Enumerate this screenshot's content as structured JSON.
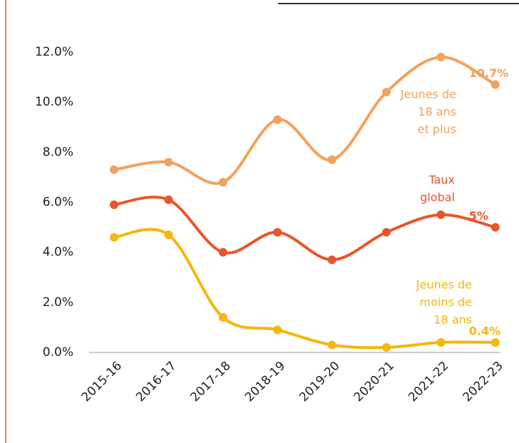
{
  "chart_data": {
    "type": "line",
    "categories": [
      "2015-16",
      "2016-17",
      "2017-18",
      "2018-19",
      "2019-20",
      "2020-21",
      "2021-22",
      "2022-23"
    ],
    "series": [
      {
        "name": [
          "Jeunes de",
          "18 ans",
          "et plus"
        ],
        "color": "#f2a25f",
        "values": [
          7.3,
          7.6,
          6.8,
          9.3,
          7.7,
          10.4,
          11.8,
          10.7
        ],
        "value_labels": [
          null,
          null,
          null,
          null,
          null,
          null,
          null,
          "10.7%"
        ]
      },
      {
        "name": [
          "Taux",
          "global"
        ],
        "color": "#e9562b",
        "values": [
          5.9,
          6.1,
          4.0,
          4.8,
          3.7,
          4.8,
          5.5,
          5.0
        ],
        "value_labels": [
          null,
          null,
          null,
          null,
          null,
          null,
          null,
          "5%"
        ]
      },
      {
        "name": [
          "Jeunes de",
          "moins de",
          "18 ans"
        ],
        "color": "#f6b60d",
        "values": [
          4.6,
          4.7,
          1.4,
          0.9,
          0.3,
          0.2,
          0.4,
          0.4
        ],
        "value_labels": [
          null,
          null,
          null,
          null,
          null,
          null,
          null,
          "0.4%"
        ]
      }
    ],
    "ylim": [
      0,
      12
    ],
    "yticks": [
      {
        "value": 0,
        "label": "0.0%"
      },
      {
        "value": 2,
        "label": "2.0%"
      },
      {
        "value": 4,
        "label": "4.0%"
      },
      {
        "value": 6,
        "label": "6.0%"
      },
      {
        "value": 8,
        "label": "8.0%"
      },
      {
        "value": 10,
        "label": "10.0%"
      },
      {
        "value": 12,
        "label": "12.0%"
      }
    ],
    "grid": false
  }
}
